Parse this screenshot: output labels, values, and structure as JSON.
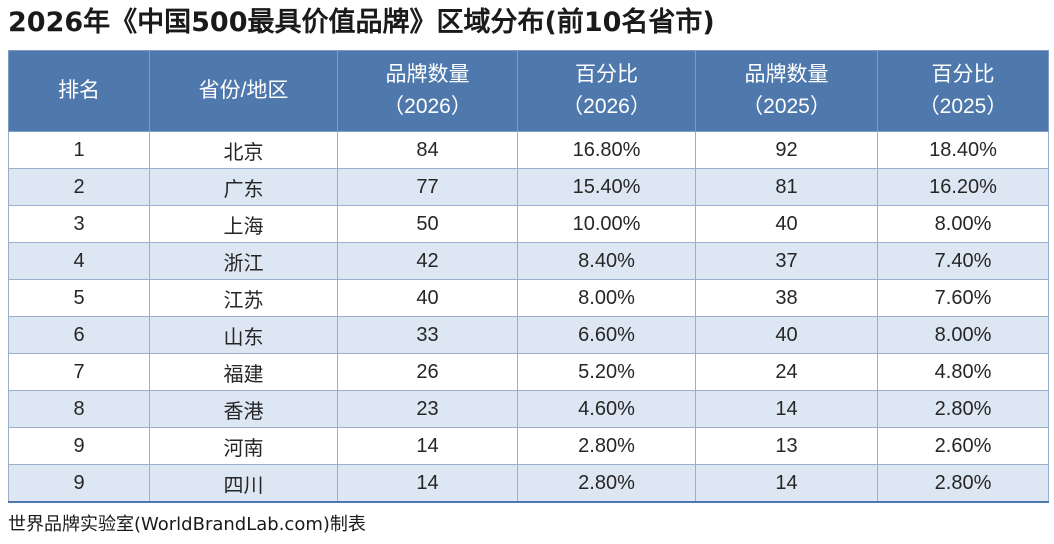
{
  "title": "2026年《中国500最具价值品牌》区域分布(前10名省市)",
  "table": {
    "headers": [
      {
        "line1": "排名",
        "line2": ""
      },
      {
        "line1": "省份/地区",
        "line2": ""
      },
      {
        "line1": "品牌数量",
        "line2": "（2026）"
      },
      {
        "line1": "百分比",
        "line2": "（2026）"
      },
      {
        "line1": "品牌数量",
        "line2": "（2025）"
      },
      {
        "line1": "百分比",
        "line2": "（2025）"
      }
    ],
    "rows": [
      [
        "1",
        "北京",
        "84",
        "16.80%",
        "92",
        "18.40%"
      ],
      [
        "2",
        "广东",
        "77",
        "15.40%",
        "81",
        "16.20%"
      ],
      [
        "3",
        "上海",
        "50",
        "10.00%",
        "40",
        "8.00%"
      ],
      [
        "4",
        "浙江",
        "42",
        "8.40%",
        "37",
        "7.40%"
      ],
      [
        "5",
        "江苏",
        "40",
        "8.00%",
        "38",
        "7.60%"
      ],
      [
        "6",
        "山东",
        "33",
        "6.60%",
        "40",
        "8.00%"
      ],
      [
        "7",
        "福建",
        "26",
        "5.20%",
        "24",
        "4.80%"
      ],
      [
        "8",
        "香港",
        "23",
        "4.60%",
        "14",
        "2.80%"
      ],
      [
        "9",
        "河南",
        "14",
        "2.80%",
        "13",
        "2.60%"
      ],
      [
        "9",
        "四川",
        "14",
        "2.80%",
        "14",
        "2.80%"
      ]
    ]
  },
  "footer": "世界品牌实验室(WorldBrandLab.com)制表",
  "colors": {
    "header_bg": "#4f79ad",
    "header_text": "#ffffff",
    "band_row_bg": "#dde6f3",
    "plain_row_bg": "#ffffff"
  }
}
